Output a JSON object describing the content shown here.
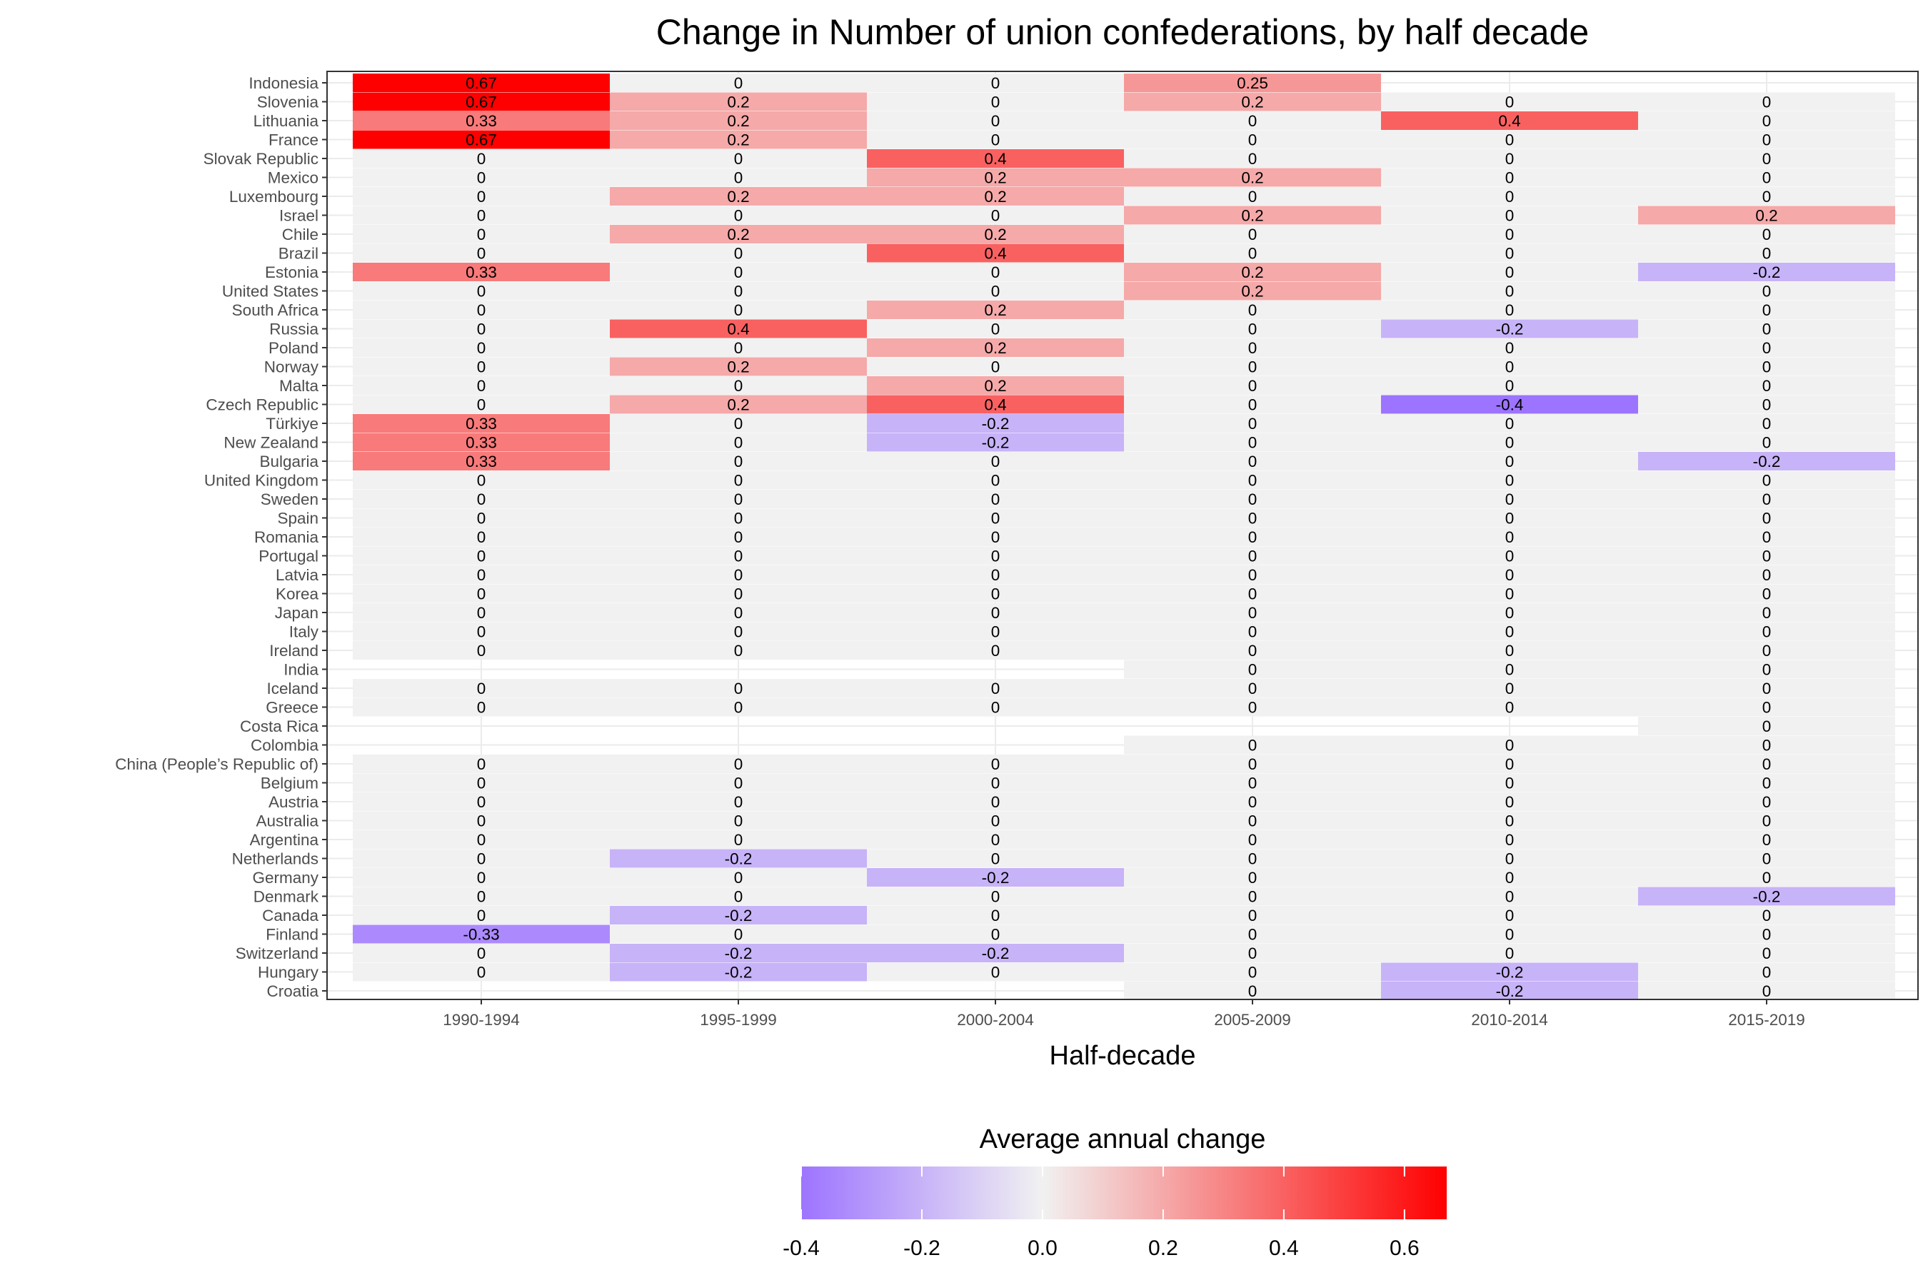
{
  "chart_data": {
    "type": "heatmap",
    "title": "Change in Number of union confederations, by half decade",
    "xlabel": "Half-decade",
    "ylabel": "",
    "x": [
      "1990-1994",
      "1995-1999",
      "2000-2004",
      "2005-2009",
      "2010-2014",
      "2015-2019"
    ],
    "y": [
      "Indonesia",
      "Slovenia",
      "Lithuania",
      "France",
      "Slovak Republic",
      "Mexico",
      "Luxembourg",
      "Israel",
      "Chile",
      "Brazil",
      "Estonia",
      "United States",
      "South Africa",
      "Russia",
      "Poland",
      "Norway",
      "Malta",
      "Czech Republic",
      "Türkiye",
      "New Zealand",
      "Bulgaria",
      "United Kingdom",
      "Sweden",
      "Spain",
      "Romania",
      "Portugal",
      "Latvia",
      "Korea",
      "Japan",
      "Italy",
      "Ireland",
      "India",
      "Iceland",
      "Greece",
      "Costa Rica",
      "Colombia",
      "China (People’s Republic of)",
      "Belgium",
      "Austria",
      "Australia",
      "Argentina",
      "Netherlands",
      "Germany",
      "Denmark",
      "Canada",
      "Finland",
      "Switzerland",
      "Hungary",
      "Croatia"
    ],
    "values": [
      [
        0.67,
        0,
        0,
        0.25,
        null,
        null
      ],
      [
        0.67,
        0.2,
        0,
        0.2,
        0,
        0
      ],
      [
        0.33,
        0.2,
        0,
        0,
        0.4,
        0
      ],
      [
        0.67,
        0.2,
        0,
        0,
        0,
        0
      ],
      [
        0,
        0,
        0.4,
        0,
        0,
        0
      ],
      [
        0,
        0,
        0.2,
        0.2,
        0,
        0
      ],
      [
        0,
        0.2,
        0.2,
        0,
        0,
        0
      ],
      [
        0,
        0,
        0,
        0.2,
        0,
        0.2
      ],
      [
        0,
        0.2,
        0.2,
        0,
        0,
        0
      ],
      [
        0,
        0,
        0.4,
        0,
        0,
        0
      ],
      [
        0.33,
        0,
        0,
        0.2,
        0,
        -0.2
      ],
      [
        0,
        0,
        0,
        0.2,
        0,
        0
      ],
      [
        0,
        0,
        0.2,
        0,
        0,
        0
      ],
      [
        0,
        0.4,
        0,
        0,
        -0.2,
        0
      ],
      [
        0,
        0,
        0.2,
        0,
        0,
        0
      ],
      [
        0,
        0.2,
        0,
        0,
        0,
        0
      ],
      [
        0,
        0,
        0.2,
        0,
        0,
        0
      ],
      [
        0,
        0.2,
        0.4,
        0,
        -0.4,
        0
      ],
      [
        0.33,
        0,
        -0.2,
        0,
        0,
        0
      ],
      [
        0.33,
        0,
        -0.2,
        0,
        0,
        0
      ],
      [
        0.33,
        0,
        0,
        0,
        0,
        -0.2
      ],
      [
        0,
        0,
        0,
        0,
        0,
        0
      ],
      [
        0,
        0,
        0,
        0,
        0,
        0
      ],
      [
        0,
        0,
        0,
        0,
        0,
        0
      ],
      [
        0,
        0,
        0,
        0,
        0,
        0
      ],
      [
        0,
        0,
        0,
        0,
        0,
        0
      ],
      [
        0,
        0,
        0,
        0,
        0,
        0
      ],
      [
        0,
        0,
        0,
        0,
        0,
        0
      ],
      [
        0,
        0,
        0,
        0,
        0,
        0
      ],
      [
        0,
        0,
        0,
        0,
        0,
        0
      ],
      [
        0,
        0,
        0,
        0,
        0,
        0
      ],
      [
        null,
        null,
        null,
        0,
        0,
        0
      ],
      [
        0,
        0,
        0,
        0,
        0,
        0
      ],
      [
        0,
        0,
        0,
        0,
        0,
        0
      ],
      [
        null,
        null,
        null,
        null,
        null,
        0
      ],
      [
        null,
        null,
        null,
        0,
        0,
        0
      ],
      [
        0,
        0,
        0,
        0,
        0,
        0
      ],
      [
        0,
        0,
        0,
        0,
        0,
        0
      ],
      [
        0,
        0,
        0,
        0,
        0,
        0
      ],
      [
        0,
        0,
        0,
        0,
        0,
        0
      ],
      [
        0,
        0,
        0,
        0,
        0,
        0
      ],
      [
        0,
        -0.2,
        0,
        0,
        0,
        0
      ],
      [
        0,
        0,
        -0.2,
        0,
        0,
        0
      ],
      [
        0,
        0,
        0,
        0,
        0,
        -0.2
      ],
      [
        0,
        -0.2,
        0,
        0,
        0,
        0
      ],
      [
        -0.33,
        0,
        0,
        0,
        0,
        0
      ],
      [
        0,
        -0.2,
        -0.2,
        0,
        0,
        0
      ],
      [
        0,
        -0.2,
        0,
        0,
        -0.2,
        0
      ],
      [
        null,
        null,
        null,
        0,
        -0.2,
        0
      ]
    ],
    "legend": {
      "title": "Average annual change",
      "position": "bottom",
      "ticks": [
        "-0.4",
        "-0.2",
        "0.0",
        "0.2",
        "0.4",
        "0.6"
      ],
      "range": [
        -0.4,
        0.67
      ],
      "low_color": "#9d74ff",
      "mid_color": "#f1f1f1",
      "high_color": "#ff0000"
    },
    "panel_background": "#ffffff",
    "grid_color": "#ebebeb"
  }
}
